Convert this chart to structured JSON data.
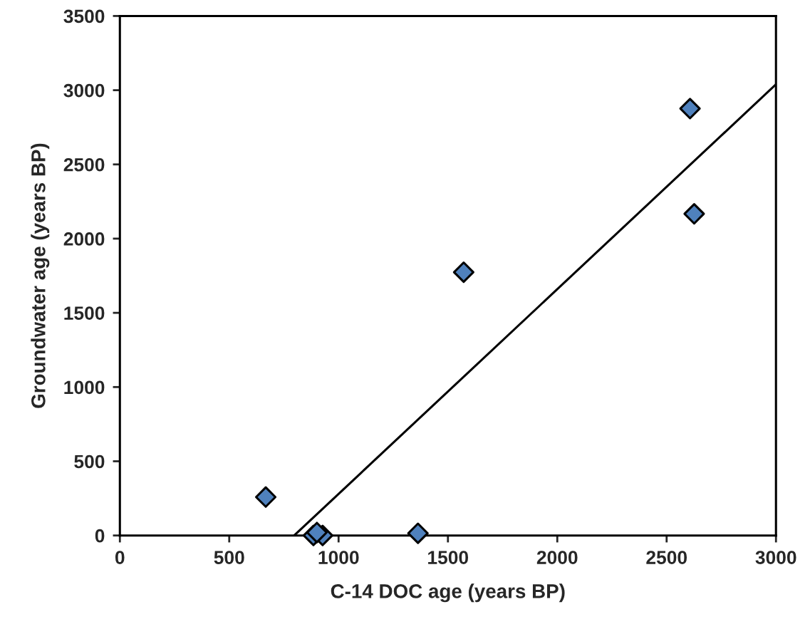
{
  "chart_data": {
    "type": "scatter",
    "xlabel": "C-14 DOC age (years BP)",
    "ylabel": "Groundwater age (years BP)",
    "xlim": [
      0,
      3000
    ],
    "ylim": [
      0,
      3500
    ],
    "xticks": [
      0,
      500,
      1000,
      1500,
      2000,
      2500,
      3000
    ],
    "yticks": [
      0,
      500,
      1000,
      1500,
      2000,
      2500,
      3000,
      3500
    ],
    "grid": false,
    "series": [
      {
        "marker": "diamond",
        "color": "#4f81bd",
        "x": [
          667,
          885,
          927,
          901,
          1363,
          1572,
          2607,
          2626
        ],
        "values": [
          259,
          0,
          0,
          20,
          15,
          1774,
          2876,
          2167
        ]
      },
      {
        "type": "line",
        "marker": "none",
        "line_style": "solid",
        "color": "#000000",
        "x": [
          797,
          3000
        ],
        "values": [
          0,
          3039
        ]
      }
    ]
  }
}
